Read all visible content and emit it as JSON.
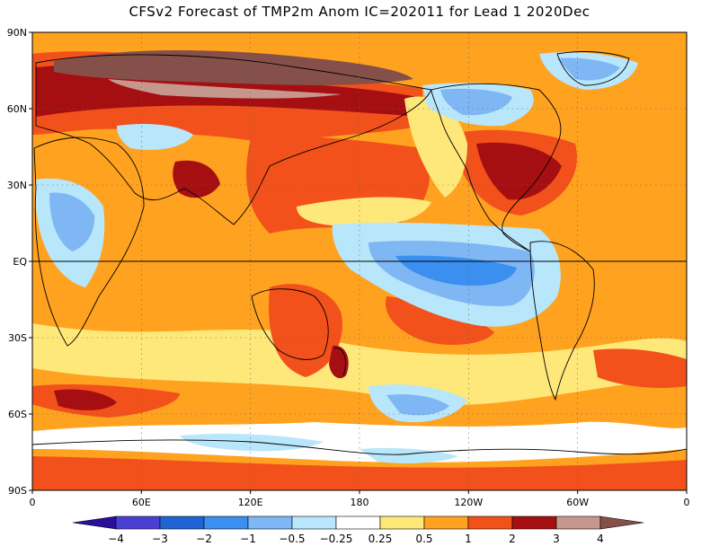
{
  "title": "CFSv2 Forecast of TMP2m Anom IC=202011 for Lead 1 2020Dec",
  "lat_labels": [
    "90N",
    "60N",
    "30N",
    "EQ",
    "30S",
    "60S",
    "90S"
  ],
  "lon_labels": [
    "0",
    "60E",
    "120E",
    "180",
    "120W",
    "60W",
    "0"
  ],
  "colorbar": {
    "labels": [
      "−4",
      "−3",
      "−2",
      "−1",
      "−0.5",
      "−0.25",
      "0.25",
      "0.5",
      "1",
      "2",
      "3",
      "4"
    ],
    "colors": [
      "#2a0f9c",
      "#4b3fd2",
      "#1f63d4",
      "#3a8ff0",
      "#7fb6f4",
      "#b8e6fb",
      "#ffffff",
      "#ffe87a",
      "#ffa21f",
      "#f2511b",
      "#a60f12",
      "#c5978d",
      "#86504a"
    ]
  },
  "palette": {
    "warm": "#ffa21f",
    "warm_strong": "#f2511b",
    "hot": "#a60f12",
    "very_hot": "#86504a",
    "pale_warm": "#ffe87a",
    "cool": "#7fb6f4",
    "cool_mid": "#3a8ff0",
    "cool_light": "#b8e6fb",
    "neutral": "#ffffff"
  }
}
